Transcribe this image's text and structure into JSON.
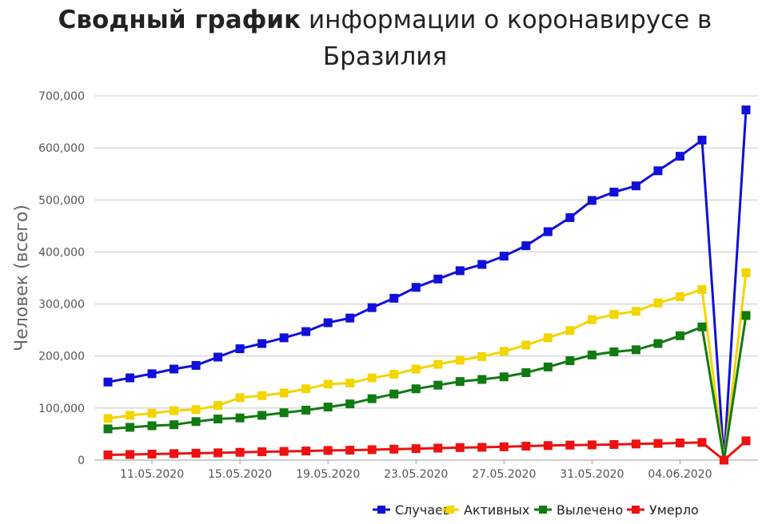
{
  "title": {
    "bold": "Сводный график",
    "rest": "информации о коронавирусе в Бразилия"
  },
  "chart_data": {
    "type": "line",
    "title": "Сводный график информации о коронавирусе в Бразилия",
    "ylabel": "Человек (всего)",
    "xlabel": "",
    "ylim": [
      0,
      700000
    ],
    "yticks": [
      "0",
      "100,000",
      "200,000",
      "300,000",
      "400,000",
      "500,000",
      "600,000",
      "700,000"
    ],
    "grid": true,
    "legend_position": "bottom-right",
    "x": [
      "09.05.2020",
      "10.05.2020",
      "11.05.2020",
      "12.05.2020",
      "13.05.2020",
      "14.05.2020",
      "15.05.2020",
      "16.05.2020",
      "17.05.2020",
      "18.05.2020",
      "19.05.2020",
      "20.05.2020",
      "21.05.2020",
      "22.05.2020",
      "23.05.2020",
      "24.05.2020",
      "25.05.2020",
      "26.05.2020",
      "27.05.2020",
      "28.05.2020",
      "29.05.2020",
      "30.05.2020",
      "31.05.2020",
      "01.06.2020",
      "02.06.2020",
      "03.06.2020",
      "04.06.2020",
      "05.06.2020",
      "06.06.2020",
      "07.06.2020"
    ],
    "xtick_labels": [
      "11.05.2020",
      "15.05.2020",
      "19.05.2020",
      "23.05.2020",
      "27.05.2020",
      "31.05.2020",
      "04.06.2020"
    ],
    "series": [
      {
        "name": "Случаев",
        "color": "#1010d8",
        "values": [
          150000,
          158000,
          166000,
          175000,
          182000,
          198000,
          214000,
          224000,
          235000,
          247000,
          264000,
          273000,
          293000,
          311000,
          332000,
          348000,
          364000,
          376000,
          392000,
          412000,
          439000,
          466000,
          499000,
          515000,
          527000,
          556000,
          584000,
          615000,
          0,
          673000
        ]
      },
      {
        "name": "Активных",
        "color": "#f2d600",
        "values": [
          80000,
          86000,
          90000,
          95000,
          97000,
          105000,
          120000,
          124000,
          129000,
          137000,
          146000,
          148000,
          158000,
          165000,
          175000,
          184000,
          192000,
          199000,
          209000,
          221000,
          235000,
          249000,
          270000,
          280000,
          286000,
          302000,
          314000,
          328000,
          0,
          360000
        ]
      },
      {
        "name": "Вылечено",
        "color": "#117a11",
        "values": [
          60000,
          63000,
          66000,
          68000,
          74000,
          79000,
          81000,
          86000,
          91000,
          96000,
          102000,
          108000,
          118000,
          127000,
          137000,
          144000,
          151000,
          155000,
          160000,
          168000,
          179000,
          191000,
          202000,
          208000,
          212000,
          224000,
          239000,
          256000,
          0,
          278000
        ]
      },
      {
        "name": "Умерло",
        "color": "#ee1111",
        "values": [
          10000,
          10800,
          11500,
          12500,
          13200,
          14000,
          15000,
          16000,
          16700,
          17500,
          18500,
          19000,
          20000,
          21000,
          22000,
          23000,
          24000,
          24600,
          25600,
          26800,
          27900,
          28800,
          29300,
          30000,
          31000,
          32000,
          33000,
          34000,
          0,
          37000
        ]
      }
    ]
  }
}
